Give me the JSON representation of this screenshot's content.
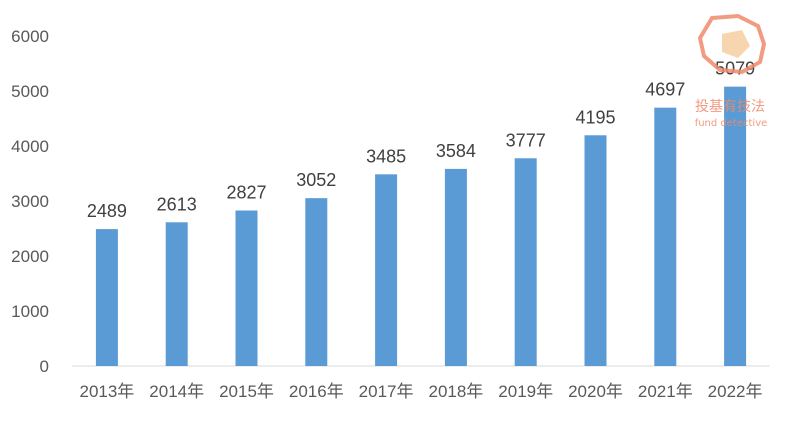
{
  "chart_data": {
    "type": "bar",
    "categories": [
      "2013年",
      "2014年",
      "2015年",
      "2016年",
      "2017年",
      "2018年",
      "2019年",
      "2020年",
      "2021年",
      "2022年"
    ],
    "values": [
      2489,
      2613,
      2827,
      3052,
      3485,
      3584,
      3777,
      4195,
      4697,
      5079
    ],
    "ylim": [
      0,
      6000
    ],
    "yticks": [
      0,
      1000,
      2000,
      3000,
      4000,
      5000,
      6000
    ],
    "data_labels": [
      "2489",
      "2613",
      "2827",
      "3052",
      "3485",
      "3584",
      "3777",
      "4195",
      "4697",
      "5079"
    ],
    "grid": false,
    "bar_color": "#5b9bd5"
  },
  "watermark": {
    "title": "投基有技法",
    "subtitle": "fund detective",
    "color": "#f08a6a"
  }
}
